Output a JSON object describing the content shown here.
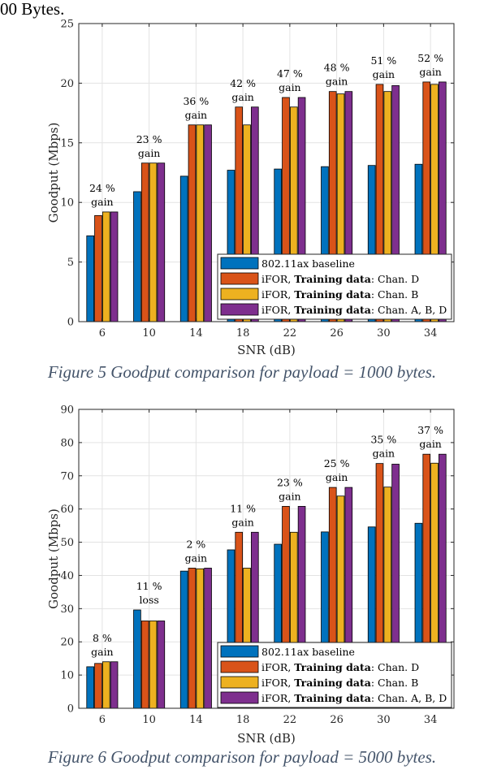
{
  "top_fragment": "00 Bytes.",
  "figures": [
    {
      "caption": "Figure 5 Goodput comparison for payload = 1000 bytes.",
      "chart_data": {
        "type": "bar",
        "xlabel": "SNR (dB)",
        "ylabel": "Goodput (Mbps)",
        "categories": [
          "6",
          "10",
          "14",
          "18",
          "22",
          "26",
          "30",
          "34"
        ],
        "ylim": [
          0,
          25
        ],
        "yticks": [
          0,
          5,
          10,
          15,
          20,
          25
        ],
        "grid": true,
        "legend_position": "bottom-right",
        "series": [
          {
            "name": "802.11ax baseline",
            "color": "#0072bd",
            "values": [
              7.2,
              10.9,
              12.2,
              12.7,
              12.8,
              13.0,
              13.1,
              13.2
            ]
          },
          {
            "name": "iFOR, Training data: Chan. D",
            "color": "#d95319",
            "values": [
              8.9,
              13.3,
              16.5,
              18.0,
              18.8,
              19.3,
              19.9,
              20.1
            ]
          },
          {
            "name": "iFOR, Training data: Chan. B",
            "color": "#edb120",
            "values": [
              9.2,
              13.3,
              16.5,
              16.5,
              18.0,
              19.1,
              19.3,
              19.9
            ]
          },
          {
            "name": "iFOR, Training data: Chan. A, B, D",
            "color": "#7e2f8e",
            "values": [
              9.2,
              13.3,
              16.5,
              18.0,
              18.8,
              19.3,
              19.8,
              20.1
            ]
          }
        ],
        "legend_entries": [
          {
            "plain": "802.11ax baseline",
            "bold": "",
            "rest": ""
          },
          {
            "plain": "iFOR, ",
            "bold": "Training data",
            "rest": ": Chan. D"
          },
          {
            "plain": "iFOR, ",
            "bold": "Training data",
            "rest": ": Chan. B"
          },
          {
            "plain": "iFOR, ",
            "bold": "Training data",
            "rest": ": Chan. A, B, D"
          }
        ],
        "annotations": [
          {
            "category": "6",
            "line1": "24 %",
            "line2": "gain"
          },
          {
            "category": "10",
            "line1": "23 %",
            "line2": "gain"
          },
          {
            "category": "14",
            "line1": "36 %",
            "line2": "gain"
          },
          {
            "category": "18",
            "line1": "42 %",
            "line2": "gain"
          },
          {
            "category": "22",
            "line1": "47 %",
            "line2": "gain"
          },
          {
            "category": "26",
            "line1": "48 %",
            "line2": "gain"
          },
          {
            "category": "30",
            "line1": "51 %",
            "line2": "gain"
          },
          {
            "category": "34",
            "line1": "52 %",
            "line2": "gain"
          }
        ]
      }
    },
    {
      "caption": "Figure 6 Goodput comparison for payload = 5000 bytes.",
      "chart_data": {
        "type": "bar",
        "xlabel": "SNR (dB)",
        "ylabel": "Goodput (Mbps)",
        "categories": [
          "6",
          "10",
          "14",
          "18",
          "22",
          "26",
          "30",
          "34"
        ],
        "ylim": [
          0,
          90
        ],
        "yticks": [
          0,
          10,
          20,
          30,
          40,
          50,
          60,
          70,
          80,
          90
        ],
        "grid": true,
        "legend_position": "bottom-right",
        "series": [
          {
            "name": "802.11ax baseline",
            "color": "#0072bd",
            "values": [
              12.5,
              29.6,
              41.3,
              47.7,
              49.4,
              53.1,
              54.6,
              55.7
            ]
          },
          {
            "name": "iFOR, Training data: Chan. D",
            "color": "#d95319",
            "values": [
              13.5,
              26.3,
              42.2,
              53.0,
              60.8,
              66.5,
              73.7,
              76.5
            ]
          },
          {
            "name": "iFOR, Training data: Chan. B",
            "color": "#edb120",
            "values": [
              14.0,
              26.3,
              42.0,
              42.2,
              53.0,
              63.9,
              66.6,
              73.8
            ]
          },
          {
            "name": "iFOR, Training data: Chan. A, B, D",
            "color": "#7e2f8e",
            "values": [
              14.0,
              26.3,
              42.2,
              53.0,
              60.8,
              66.5,
              73.5,
              76.5
            ]
          }
        ],
        "legend_entries": [
          {
            "plain": "802.11ax baseline",
            "bold": "",
            "rest": ""
          },
          {
            "plain": "iFOR, ",
            "bold": "Training data",
            "rest": ": Chan. D"
          },
          {
            "plain": "iFOR, ",
            "bold": "Training data",
            "rest": ": Chan. B"
          },
          {
            "plain": "iFOR, ",
            "bold": "Training data",
            "rest": ": Chan. A, B, D"
          }
        ],
        "annotations": [
          {
            "category": "6",
            "line1": "8 %",
            "line2": "gain"
          },
          {
            "category": "10",
            "line1": "11 %",
            "line2": "loss"
          },
          {
            "category": "14",
            "line1": "2 %",
            "line2": "gain"
          },
          {
            "category": "18",
            "line1": "11 %",
            "line2": "gain"
          },
          {
            "category": "22",
            "line1": "23 %",
            "line2": "gain"
          },
          {
            "category": "26",
            "line1": "25 %",
            "line2": "gain"
          },
          {
            "category": "30",
            "line1": "35 %",
            "line2": "gain"
          },
          {
            "category": "34",
            "line1": "37 %",
            "line2": "gain"
          }
        ]
      }
    }
  ]
}
